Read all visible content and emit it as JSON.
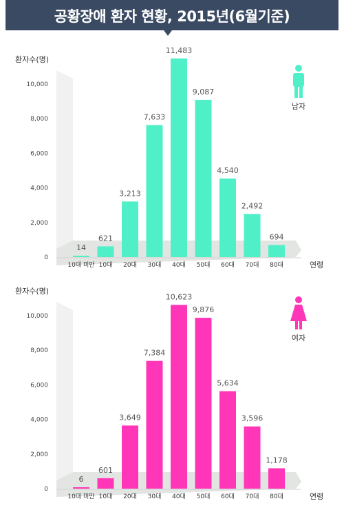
{
  "title": "공황장애 환자 현황, 2015년(6월기준)",
  "colors": {
    "banner": "#3b4a63",
    "male": "#4ff0c8",
    "female": "#ff36b8",
    "floor": "#e3e5e3",
    "wall": "#f0f1f0"
  },
  "chart_data": [
    {
      "type": "bar",
      "ylabel": "환자수(명)",
      "xlabel": "연령",
      "series_label": "남자",
      "icon": "male-icon",
      "categories": [
        "10대 미만",
        "10대",
        "20대",
        "30대",
        "40대",
        "50대",
        "60대",
        "70대",
        "80대"
      ],
      "values": [
        14,
        621,
        3213,
        7633,
        11483,
        9087,
        4540,
        2492,
        694
      ],
      "value_labels": [
        "14",
        "621",
        "3,213",
        "7,633",
        "11,483",
        "9,087",
        "4,540",
        "2,492",
        "694"
      ],
      "yticks": [
        "0",
        "2,000",
        "4,000",
        "6,000",
        "8,000",
        "10,000"
      ],
      "ylim": [
        0,
        10000
      ]
    },
    {
      "type": "bar",
      "ylabel": "환자수(명)",
      "xlabel": "연령",
      "series_label": "여자",
      "icon": "female-icon",
      "categories": [
        "10대 미만",
        "10대",
        "20대",
        "30대",
        "40대",
        "50대",
        "60대",
        "70대",
        "80대"
      ],
      "values": [
        6,
        601,
        3649,
        7384,
        10623,
        9876,
        5634,
        3596,
        1178
      ],
      "value_labels": [
        "6",
        "601",
        "3,649",
        "7,384",
        "10,623",
        "9,876",
        "5,634",
        "3,596",
        "1,178"
      ],
      "yticks": [
        "0",
        "2,000",
        "4,000",
        "6,000",
        "8,000",
        "10,000"
      ],
      "ylim": [
        0,
        10000
      ]
    }
  ]
}
